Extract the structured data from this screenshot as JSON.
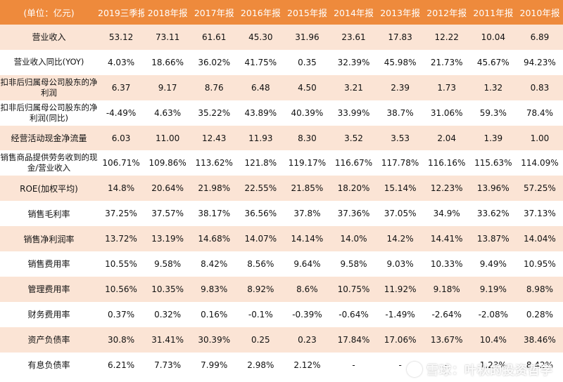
{
  "table": {
    "headers": [
      "(单位：亿元)",
      "2019三季报",
      "2018年报",
      "2017年报",
      "2016年报",
      "2015年报",
      "2014年报",
      "2013年报",
      "2012年报",
      "2011年报",
      "2010年报"
    ],
    "rows": [
      {
        "label": "营业收入",
        "values": [
          "53.12",
          "73.11",
          "61.61",
          "45.30",
          "31.96",
          "23.61",
          "17.83",
          "12.22",
          "10.04",
          "6.89"
        ]
      },
      {
        "label": "营业收入同比(YOY)",
        "values": [
          "4.03%",
          "18.66%",
          "36.02%",
          "41.75%",
          "0.35",
          "32.39%",
          "45.98%",
          "21.73%",
          "45.67%",
          "94.23%"
        ]
      },
      {
        "label": "扣非后归属母公司股东的净利润",
        "values": [
          "6.37",
          "9.17",
          "8.76",
          "6.48",
          "4.50",
          "3.21",
          "2.39",
          "1.73",
          "1.32",
          "0.83"
        ]
      },
      {
        "label": "扣非后归属母公司股东的净利润(同比)",
        "values": [
          "-4.49%",
          "4.63%",
          "35.22%",
          "43.89%",
          "40.39%",
          "33.99%",
          "38.7%",
          "31.06%",
          "59.3%",
          "78.4%"
        ]
      },
      {
        "label": "经营活动现金净流量",
        "values": [
          "6.03",
          "11.00",
          "12.43",
          "11.93",
          "8.30",
          "3.52",
          "3.53",
          "2.04",
          "1.39",
          "1.00"
        ]
      },
      {
        "label": "销售商品提供劳务收到的现金/营业收入",
        "values": [
          "106.71%",
          "109.86%",
          "113.62%",
          "121.8%",
          "119.17%",
          "116.67%",
          "117.78%",
          "116.16%",
          "115.63%",
          "114.09%"
        ]
      },
      {
        "label": "ROE(加权平均)",
        "values": [
          "14.8%",
          "20.64%",
          "21.98%",
          "22.55%",
          "21.85%",
          "18.20%",
          "15.14%",
          "12.23%",
          "13.96%",
          "57.25%"
        ]
      },
      {
        "label": "销售毛利率",
        "values": [
          "37.25%",
          "37.57%",
          "38.17%",
          "36.56%",
          "37.8%",
          "37.36%",
          "37.05%",
          "34.9%",
          "33.62%",
          "37.13%"
        ]
      },
      {
        "label": "销售净利润率",
        "values": [
          "13.72%",
          "13.19%",
          "14.68%",
          "14.07%",
          "14.14%",
          "14.0%",
          "14.2%",
          "14.41%",
          "13.87%",
          "14.04%"
        ]
      },
      {
        "label": "销售费用率",
        "values": [
          "10.55%",
          "9.58%",
          "8.42%",
          "8.56%",
          "9.64%",
          "9.58%",
          "9.03%",
          "10.33%",
          "9.49%",
          "10.95%"
        ]
      },
      {
        "label": "管理费用率",
        "values": [
          "10.56%",
          "10.35%",
          "9.83%",
          "8.92%",
          "8.6%",
          "10.75%",
          "11.92%",
          "9.18%",
          "9.19%",
          "8.98%"
        ]
      },
      {
        "label": "财务费用率",
        "values": [
          "0.37%",
          "0.32%",
          "0.16%",
          "-0.1%",
          "-0.39%",
          "-0.64%",
          "-1.49%",
          "-2.64%",
          "-2.08%",
          "0.28%"
        ]
      },
      {
        "label": "资产负债率",
        "values": [
          "30.8%",
          "31.41%",
          "30.39%",
          "0.25",
          "0.23",
          "17.84%",
          "17.06%",
          "13.67%",
          "10.4%",
          "38.46%"
        ]
      },
      {
        "label": "有息负债率",
        "values": [
          "6.21%",
          "7.73%",
          "7.99%",
          "2.98%",
          "2.12%",
          "-",
          "-",
          "-",
          "1.23%",
          "8.42%"
        ]
      }
    ]
  },
  "watermark": {
    "text": "雪球：叶秋的投资哲学",
    "icon": "snowball-logo-icon"
  }
}
